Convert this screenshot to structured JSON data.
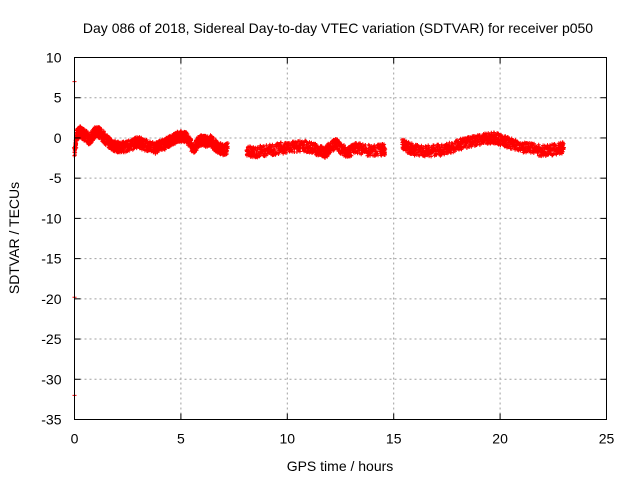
{
  "chart_data": {
    "type": "scatter",
    "title": "Day 086 of 2018, Sidereal Day-to-day VTEC variation (SDTVAR) for receiver p050",
    "xlabel": "GPS time / hours",
    "ylabel": "SDTVAR / TECUs",
    "xlim": [
      0,
      25
    ],
    "ylim": [
      -35,
      10
    ],
    "xticks": [
      0,
      5,
      10,
      15,
      20,
      25
    ],
    "yticks": [
      10,
      5,
      0,
      -5,
      -10,
      -15,
      -20,
      -25,
      -30,
      -35
    ],
    "grid": true,
    "legend": "none",
    "marker_color": "#ff0000",
    "series": [
      {
        "name": "SDTVAR",
        "segments": [
          {
            "x": [
              0.0,
              0.1,
              0.25,
              0.5,
              0.7,
              0.9,
              1.0,
              1.2,
              1.4,
              1.6,
              1.8,
              2.0,
              2.2,
              2.5,
              2.8,
              3.0,
              3.2,
              3.5,
              3.8,
              4.0,
              4.2,
              4.4,
              4.6,
              4.8,
              5.0,
              5.2,
              5.4,
              5.6,
              5.8,
              6.0,
              6.2,
              6.4,
              6.6,
              6.8,
              7.0,
              7.2
            ],
            "y": [
              -1.8,
              0.3,
              0.8,
              0.3,
              -0.2,
              0.5,
              0.9,
              0.6,
              0.0,
              -0.5,
              -0.9,
              -1.1,
              -1.2,
              -1.0,
              -0.7,
              -0.5,
              -0.8,
              -1.0,
              -1.3,
              -1.0,
              -0.8,
              -0.5,
              -0.2,
              0.1,
              0.2,
              0.1,
              -0.3,
              -1.5,
              -0.6,
              -0.2,
              -0.5,
              -0.3,
              -0.9,
              -1.3,
              -1.5,
              -1.3
            ]
          },
          {
            "x": [
              8.1,
              8.4,
              8.8,
              9.2,
              9.6,
              10.0,
              10.4,
              10.8,
              11.2,
              11.5,
              11.8,
              12.0,
              12.3,
              12.6,
              12.9,
              13.2,
              13.6,
              14.0,
              14.4,
              14.6
            ],
            "y": [
              -1.5,
              -1.8,
              -1.6,
              -1.5,
              -1.3,
              -1.2,
              -1.1,
              -1.0,
              -1.3,
              -1.6,
              -1.8,
              -1.2,
              -0.8,
              -1.5,
              -1.8,
              -1.2,
              -1.5,
              -1.6,
              -1.5,
              -1.4
            ]
          },
          {
            "x": [
              15.4,
              15.7,
              16.0,
              16.4,
              16.8,
              17.2,
              17.6,
              18.0,
              18.4,
              18.8,
              19.2,
              19.5,
              19.8,
              20.1,
              20.4,
              20.8,
              21.2,
              21.6,
              22.0,
              22.4,
              22.8,
              23.0
            ],
            "y": [
              -0.8,
              -1.2,
              -1.5,
              -1.6,
              -1.6,
              -1.5,
              -1.3,
              -0.9,
              -0.6,
              -0.4,
              -0.2,
              0.0,
              0.0,
              -0.3,
              -0.6,
              -0.9,
              -1.2,
              -1.4,
              -1.6,
              -1.5,
              -1.3,
              -1.2
            ]
          }
        ],
        "outliers": [
          {
            "x": 0.0,
            "y": 7.0
          },
          {
            "x": 0.0,
            "y": -19.8
          },
          {
            "x": 0.0,
            "y": -32.0
          }
        ]
      }
    ]
  }
}
